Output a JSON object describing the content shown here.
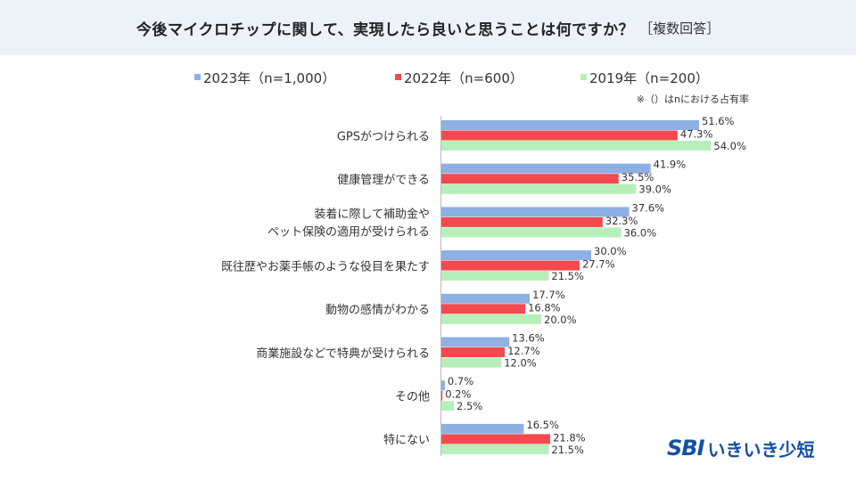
{
  "title": "今後マイクロチップに関して、実現したら良いと思うことは何ですか？",
  "title_suffix": "［複数回答］",
  "note": "※（）はnにおける占有率",
  "logo": {
    "mark": "SBI",
    "text": "いきいき少短"
  },
  "chart_data": {
    "type": "bar",
    "orientation": "horizontal",
    "title": "今後マイクロチップに関して、実現したら良いと思うことは何ですか？［複数回答］",
    "categories": [
      [
        "GPSがつけられる"
      ],
      [
        "健康管理ができる"
      ],
      [
        "装着に際して補助金や",
        "ペット保険の適用が受けられる"
      ],
      [
        "既往歴やお薬手帳のような役目を果たす"
      ],
      [
        "動物の感情がわかる"
      ],
      [
        "商業施設などで特典が受けられる"
      ],
      [
        "その他"
      ],
      [
        "特にない"
      ]
    ],
    "series": [
      {
        "name": "2023年（n=1,000）",
        "color": "#8eb0e2",
        "values": [
          51.6,
          41.9,
          37.6,
          30.0,
          17.7,
          13.6,
          0.7,
          16.5
        ]
      },
      {
        "name": "2022年（n=600）",
        "color": "#f24a4e",
        "values": [
          47.3,
          35.5,
          32.3,
          27.7,
          16.8,
          12.7,
          0.2,
          21.8
        ]
      },
      {
        "name": "2019年（n=200）",
        "color": "#b6efb9",
        "values": [
          54.0,
          39.0,
          36.0,
          21.5,
          20.0,
          12.0,
          2.5,
          21.5
        ]
      }
    ],
    "value_suffix": "%",
    "xlim": [
      0,
      100
    ],
    "legend": "top"
  }
}
